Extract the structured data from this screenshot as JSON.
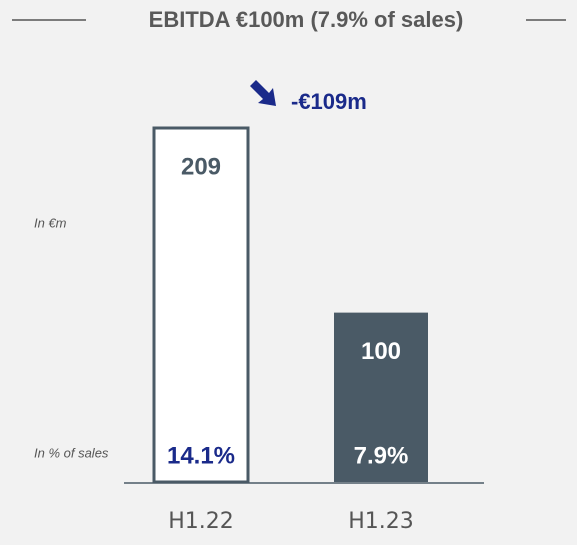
{
  "chart_data": {
    "type": "bar",
    "title": "EBITDA €100m (7.9% of sales)",
    "annotation": "-€109m",
    "value_axis_label": "In €m",
    "pct_axis_label": "In % of sales",
    "categories": [
      "H1.22",
      "H1.23"
    ],
    "values": [
      209,
      100
    ],
    "pct_labels": [
      "14.1%",
      "7.9%"
    ],
    "colors": [
      "#ffffff",
      "#4a5a66"
    ],
    "outline_color": "#4a5a66",
    "annotation_color": "#1a2a8a"
  }
}
